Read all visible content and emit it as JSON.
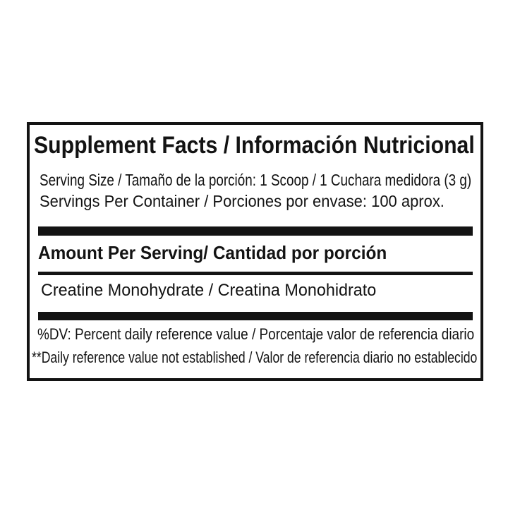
{
  "label": {
    "title": "Supplement Facts / Información Nutricional",
    "serving": {
      "serving_size": "Serving Size / Tamaño de la porción: 1 Scoop / 1 Cuchara medidora (3 g)",
      "servings_per_container": "Servings Per Container / Porciones por envase: 100 aprox."
    },
    "section_header": "Amount Per Serving/ Cantidad por porción",
    "ingredient": "Creatine Monohydrate / Creatina Monohidrato",
    "footnotes": {
      "dv": "%DV: Percent daily reference value / Porcentaje valor de referencia diario",
      "not_established": "**Daily reference value not established / Valor de referencia diario no establecido"
    },
    "colors": {
      "ink": "#131313",
      "background": "#ffffff"
    }
  }
}
